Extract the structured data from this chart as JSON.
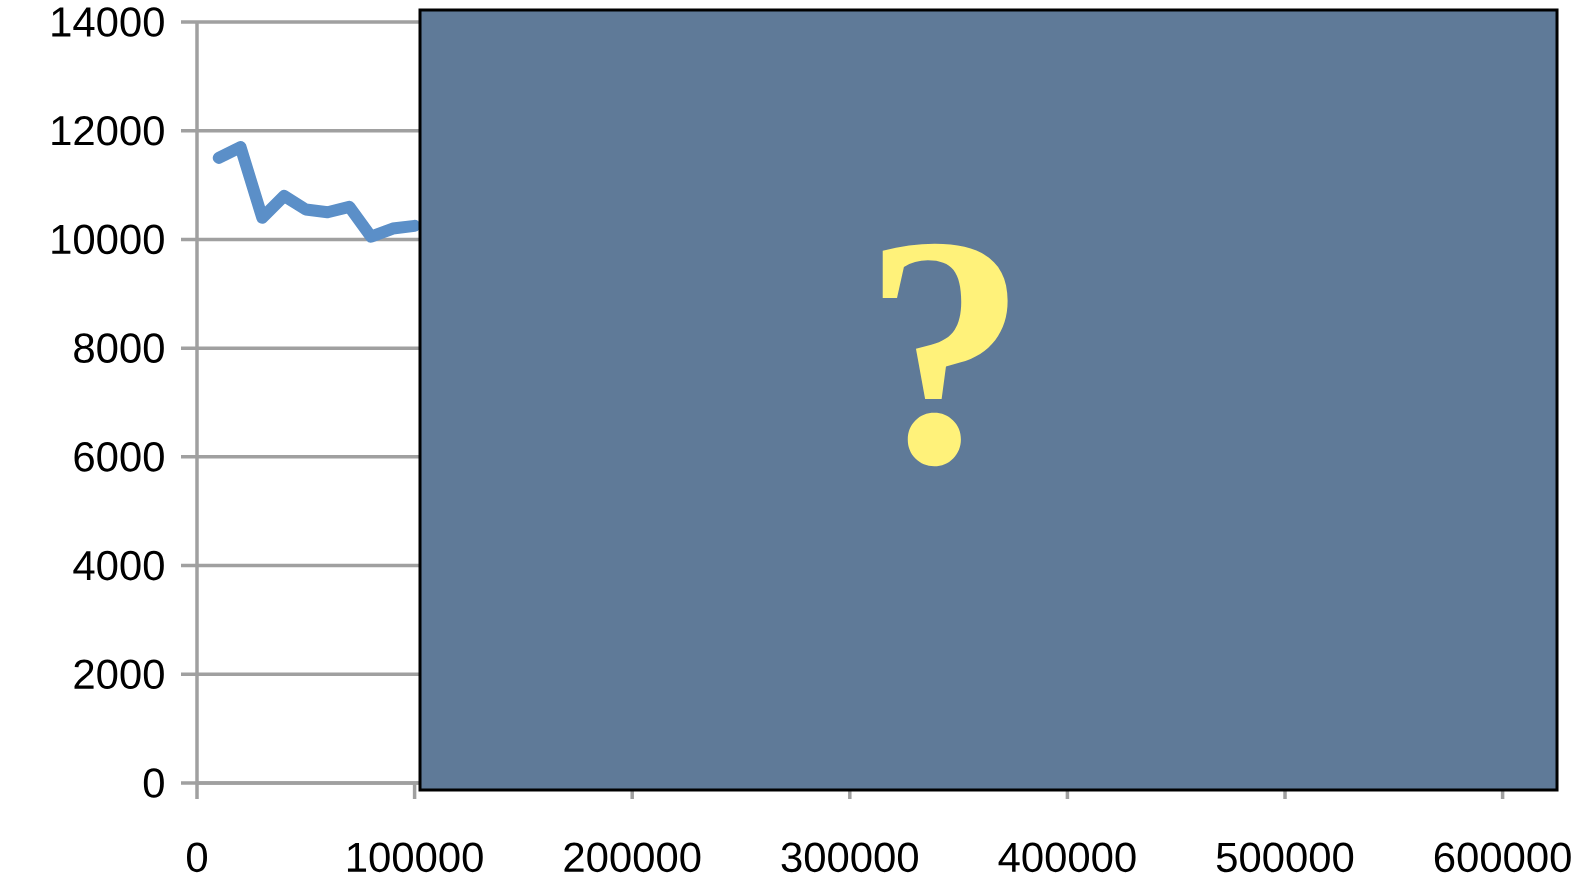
{
  "chart_data": {
    "type": "line",
    "color": "#5b8fc8",
    "x": [
      10000,
      20000,
      30000,
      40000,
      50000,
      60000,
      70000,
      80000,
      90000,
      100000
    ],
    "values": [
      11500,
      11700,
      10400,
      10800,
      10550,
      10500,
      10600,
      10050,
      10200,
      10250
    ],
    "xlim": [
      0,
      625000
    ],
    "xticks": [
      0,
      100000,
      200000,
      300000,
      400000,
      500000,
      600000
    ],
    "ylim": [
      0,
      14000
    ],
    "yticks": [
      0,
      2000,
      4000,
      6000,
      8000,
      10000,
      12000,
      14000
    ],
    "grid": "y",
    "annotations": [
      "?"
    ]
  }
}
